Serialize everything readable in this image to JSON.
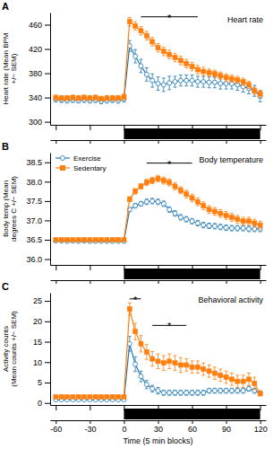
{
  "chart_data": [
    {
      "type": "line",
      "panel_label": "A",
      "title": "Heart rate",
      "ylabel": "Heart rate (Mean BPM\n+/− SEM)",
      "x": [
        -60,
        -55,
        -50,
        -45,
        -40,
        -35,
        -30,
        -25,
        -20,
        -15,
        -10,
        -5,
        0,
        5,
        10,
        15,
        20,
        25,
        30,
        35,
        40,
        45,
        50,
        55,
        60,
        65,
        70,
        75,
        80,
        85,
        90,
        95,
        100,
        105,
        110,
        115,
        120
      ],
      "series": [
        {
          "name": "Exercise",
          "marker": "circle-open",
          "line_style": "solid",
          "values": [
            337,
            336,
            335,
            336,
            335,
            336,
            335,
            336,
            334,
            335,
            336,
            335,
            337,
            425,
            408,
            392,
            378,
            368,
            363,
            361,
            364,
            366,
            368,
            368,
            368,
            366,
            366,
            365,
            365,
            363,
            363,
            363,
            361,
            358,
            355,
            351,
            342
          ],
          "errors": [
            4,
            4,
            4,
            4,
            4,
            4,
            4,
            4,
            4,
            4,
            4,
            4,
            4,
            9,
            11,
            11,
            11,
            11,
            11,
            11,
            11,
            9,
            9,
            9,
            9,
            9,
            9,
            9,
            9,
            9,
            9,
            9,
            9,
            9,
            9,
            9,
            9
          ]
        },
        {
          "name": "Sedentary",
          "marker": "square",
          "line_style": "solid",
          "values": [
            340,
            339,
            339,
            340,
            339,
            340,
            339,
            340,
            338,
            339,
            339,
            339,
            341,
            465,
            458,
            450,
            442,
            432,
            422,
            416,
            411,
            406,
            401,
            396,
            391,
            386,
            383,
            381,
            379,
            376,
            373,
            371,
            369,
            366,
            361,
            351,
            346
          ],
          "errors": [
            4,
            4,
            4,
            4,
            4,
            4,
            4,
            4,
            4,
            4,
            4,
            4,
            5,
            7,
            7,
            7,
            7,
            7,
            7,
            7,
            7,
            7,
            7,
            7,
            7,
            7,
            7,
            6,
            6,
            6,
            6,
            6,
            6,
            6,
            6,
            6,
            6
          ]
        }
      ],
      "xlim": [
        -65,
        125
      ],
      "xticks": [
        -60,
        -30,
        0,
        30,
        60,
        90,
        120
      ],
      "ylim": [
        295,
        480
      ],
      "yticks": [
        300,
        340,
        380,
        420,
        460
      ],
      "tick_labels": "y",
      "annotations": [
        {
          "x": [
            15,
            65
          ],
          "y": 473,
          "text": "*"
        }
      ],
      "novel_env": {
        "start": 0,
        "end": 120
      }
    },
    {
      "type": "line",
      "panel_label": "B",
      "title": "Body temperature",
      "ylabel": "Body temp (Mean\ndegrees C +/− SEM)",
      "x": [
        -60,
        -55,
        -50,
        -45,
        -40,
        -35,
        -30,
        -25,
        -20,
        -15,
        -10,
        -5,
        0,
        5,
        10,
        15,
        20,
        25,
        30,
        35,
        40,
        45,
        50,
        55,
        60,
        65,
        70,
        75,
        80,
        85,
        90,
        95,
        100,
        105,
        110,
        115,
        120
      ],
      "series": [
        {
          "name": "Exercise",
          "marker": "circle-open",
          "line_style": "solid",
          "values": [
            36.47,
            36.47,
            36.46,
            36.47,
            36.46,
            36.47,
            36.46,
            36.46,
            36.46,
            36.46,
            36.46,
            36.46,
            36.46,
            37.28,
            37.38,
            37.43,
            37.48,
            37.5,
            37.48,
            37.43,
            37.28,
            37.18,
            37.08,
            37.03,
            36.98,
            36.93,
            36.88,
            36.86,
            36.85,
            36.83,
            36.81,
            36.8,
            36.8,
            36.8,
            36.78,
            36.78,
            36.78
          ],
          "errors": [
            0.03,
            0.03,
            0.03,
            0.03,
            0.03,
            0.03,
            0.03,
            0.03,
            0.03,
            0.03,
            0.03,
            0.03,
            0.03,
            0.05,
            0.06,
            0.06,
            0.07,
            0.07,
            0.07,
            0.07,
            0.07,
            0.07,
            0.07,
            0.07,
            0.07,
            0.07,
            0.07,
            0.07,
            0.07,
            0.07,
            0.07,
            0.07,
            0.07,
            0.07,
            0.07,
            0.07,
            0.07
          ]
        },
        {
          "name": "Sedentary",
          "marker": "square",
          "line_style": "solid",
          "values": [
            36.5,
            36.5,
            36.5,
            36.5,
            36.5,
            36.5,
            36.5,
            36.5,
            36.5,
            36.5,
            36.5,
            36.5,
            36.5,
            37.55,
            37.75,
            37.88,
            37.98,
            38.03,
            38.08,
            38.03,
            37.98,
            37.88,
            37.78,
            37.68,
            37.58,
            37.48,
            37.38,
            37.28,
            37.23,
            37.18,
            37.13,
            37.08,
            37.03,
            36.98,
            36.98,
            36.93,
            36.88
          ],
          "errors": [
            0.03,
            0.03,
            0.03,
            0.03,
            0.03,
            0.03,
            0.03,
            0.03,
            0.03,
            0.03,
            0.03,
            0.03,
            0.03,
            0.06,
            0.07,
            0.07,
            0.08,
            0.08,
            0.08,
            0.09,
            0.09,
            0.09,
            0.09,
            0.1,
            0.1,
            0.1,
            0.1,
            0.1,
            0.1,
            0.1,
            0.1,
            0.1,
            0.1,
            0.1,
            0.1,
            0.1,
            0.1
          ]
        }
      ],
      "xlim": [
        -65,
        125
      ],
      "xticks": [
        -60,
        -30,
        0,
        30,
        60,
        90,
        120
      ],
      "ylim": [
        35.85,
        38.75
      ],
      "yticks": [
        {
          "value": 36.0,
          "label": "36.0"
        },
        36.5,
        {
          "value": 37.0,
          "label": "37.0"
        },
        37.5,
        {
          "value": 38.0,
          "label": "38.0"
        },
        38.5
      ],
      "tick_labels": "y",
      "legend": "upper left",
      "annotations": [
        {
          "x": [
            20,
            60
          ],
          "y": 38.48,
          "text": "*"
        }
      ],
      "novel_env": {
        "start": 0,
        "end": 120
      }
    },
    {
      "type": "line",
      "panel_label": "C",
      "title": "Behavioral activity",
      "ylabel": "Activity counts\n(Mean counts +/− SEM)",
      "xlabel": "Time (5 min blocks)",
      "x": [
        -60,
        -55,
        -50,
        -45,
        -40,
        -35,
        -30,
        -25,
        -20,
        -15,
        -10,
        -5,
        0,
        5,
        10,
        15,
        20,
        25,
        30,
        35,
        40,
        45,
        50,
        55,
        60,
        65,
        70,
        75,
        80,
        85,
        90,
        95,
        100,
        105,
        110,
        115,
        120
      ],
      "series": [
        {
          "name": "Exercise",
          "marker": "circle-open",
          "line_style": "solid",
          "values": [
            0.8,
            0.8,
            0.8,
            0.8,
            0.8,
            0.8,
            0.8,
            0.8,
            0.8,
            0.8,
            0.8,
            0.8,
            0.8,
            14.5,
            9.5,
            6.5,
            4.5,
            3.5,
            3.0,
            2.5,
            2.5,
            2.5,
            2.5,
            2.5,
            2.5,
            2.5,
            2.5,
            3.0,
            3.0,
            3.0,
            3.0,
            3.0,
            3.0,
            3.0,
            3.5,
            3.0,
            2.5
          ],
          "errors": [
            0.2,
            0.2,
            0.2,
            0.2,
            0.2,
            0.2,
            0.2,
            0.2,
            0.2,
            0.2,
            0.2,
            0.2,
            0.2,
            1.8,
            1.8,
            1.3,
            1.0,
            0.8,
            0.8,
            0.6,
            0.6,
            0.6,
            0.6,
            0.6,
            0.6,
            0.6,
            0.6,
            0.6,
            0.6,
            0.6,
            0.6,
            0.6,
            0.6,
            0.6,
            0.6,
            0.6,
            0.4
          ]
        },
        {
          "name": "Sedentary",
          "marker": "square",
          "line_style": "solid",
          "values": [
            1.5,
            1.5,
            1.5,
            1.5,
            1.5,
            1.5,
            1.5,
            1.5,
            1.5,
            1.5,
            1.5,
            1.5,
            1.5,
            23.0,
            17.5,
            14.5,
            12.5,
            10.8,
            10.2,
            9.8,
            10.2,
            9.8,
            9.3,
            9.3,
            8.8,
            8.8,
            8.3,
            7.8,
            7.3,
            6.8,
            6.3,
            5.8,
            5.3,
            5.3,
            5.8,
            4.8,
            2.3
          ],
          "errors": [
            0.3,
            0.3,
            0.3,
            0.3,
            0.3,
            0.3,
            0.3,
            0.3,
            0.3,
            0.3,
            0.3,
            0.3,
            0.3,
            1.5,
            2.0,
            2.0,
            1.8,
            1.8,
            1.8,
            1.8,
            1.8,
            1.8,
            1.8,
            1.5,
            1.5,
            1.5,
            1.5,
            1.5,
            1.5,
            1.5,
            1.5,
            1.5,
            1.5,
            1.5,
            1.5,
            1.5,
            0.6
          ]
        }
      ],
      "xlim": [
        -65,
        125
      ],
      "xticks": [
        -60,
        -30,
        0,
        30,
        60,
        90,
        120
      ],
      "ylim": [
        -0.5,
        27
      ],
      "yticks": [
        0,
        5,
        10,
        15,
        20,
        25
      ],
      "annotations": [
        {
          "x": [
            5,
            15
          ],
          "y": 25.5,
          "text": "*"
        },
        {
          "x": [
            25,
            55
          ],
          "y": 19.0,
          "text": "*"
        }
      ],
      "novel_env": {
        "start": 0,
        "end": 120
      }
    }
  ]
}
